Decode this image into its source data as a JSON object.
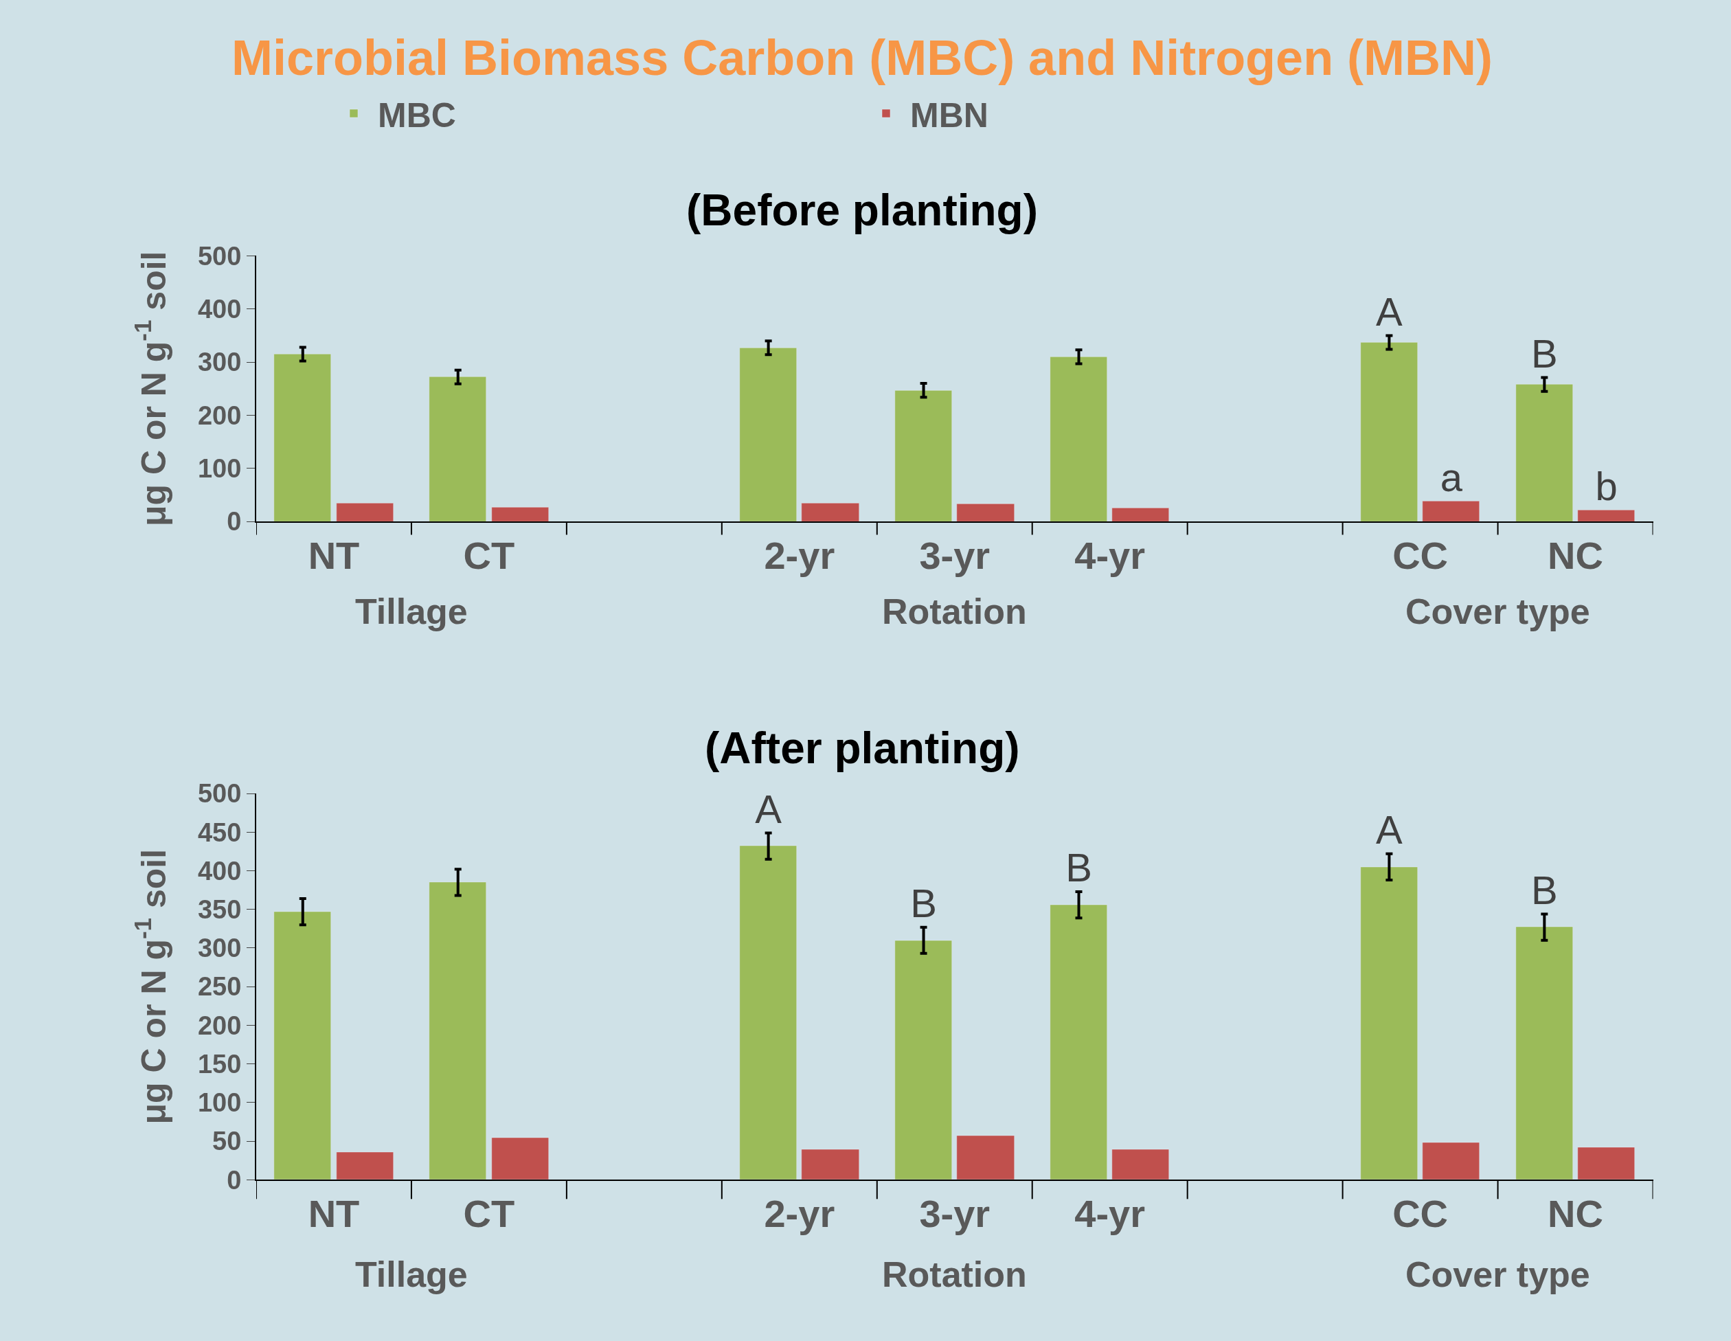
{
  "chart_data": [
    {
      "type": "bar",
      "title": "Microbial Biomass Carbon (MBC) and Nitrogen (MBN)",
      "subtitle": "(Before planting)",
      "ylabel": "μg C or N g$^{-1}$ soil",
      "categories": [
        "NT",
        "CT",
        null,
        "2-yr",
        "3-yr",
        "4-yr",
        null,
        "CC",
        "NC"
      ],
      "series": [
        {
          "name": "MBC",
          "color": "#9bbb59",
          "values": [
            315,
            272,
            null,
            327,
            247,
            310,
            null,
            337,
            258
          ],
          "errors": [
            13,
            13,
            null,
            13,
            13,
            13,
            null,
            13,
            13
          ],
          "value_labels": [
            null,
            null,
            null,
            null,
            null,
            null,
            null,
            "A",
            "B"
          ]
        },
        {
          "name": "MBN",
          "color": "#c0504d",
          "values": [
            35,
            27,
            null,
            34,
            33,
            25,
            null,
            38,
            22
          ],
          "value_labels": [
            null,
            null,
            null,
            null,
            null,
            null,
            null,
            "a",
            "b"
          ]
        }
      ],
      "ylim": [
        0,
        500
      ],
      "yticks": [
        0,
        100,
        200,
        300,
        400,
        500
      ],
      "grid": false,
      "legend": "top",
      "annotations": [
        "Tillage",
        "Rotation",
        "Cover type"
      ]
    },
    {
      "type": "bar",
      "title": "(After planting)",
      "ylabel": "μg C or N g$^{-1}$ soil",
      "categories": [
        "NT",
        "CT",
        null,
        "2-yr",
        "3-yr",
        "4-yr",
        null,
        "CC",
        "NC"
      ],
      "series": [
        {
          "color": "#9bbb59",
          "values": [
            347,
            385,
            null,
            432,
            310,
            356,
            null,
            405,
            327
          ],
          "errors": [
            17,
            17,
            null,
            17,
            17,
            17,
            null,
            17,
            17
          ],
          "value_labels": [
            null,
            null,
            null,
            "A",
            "B",
            "B",
            null,
            "A",
            "B"
          ]
        },
        {
          "color": "#c0504d",
          "values": [
            36,
            54,
            null,
            39,
            57,
            39,
            null,
            48,
            42
          ]
        }
      ],
      "ylim": [
        0,
        500
      ],
      "yticks": [
        0,
        50,
        100,
        150,
        200,
        250,
        300,
        350,
        400,
        450,
        500
      ],
      "grid": false,
      "legend": false,
      "annotations": [
        "Tillage",
        "Rotation",
        "Cover type"
      ]
    }
  ]
}
